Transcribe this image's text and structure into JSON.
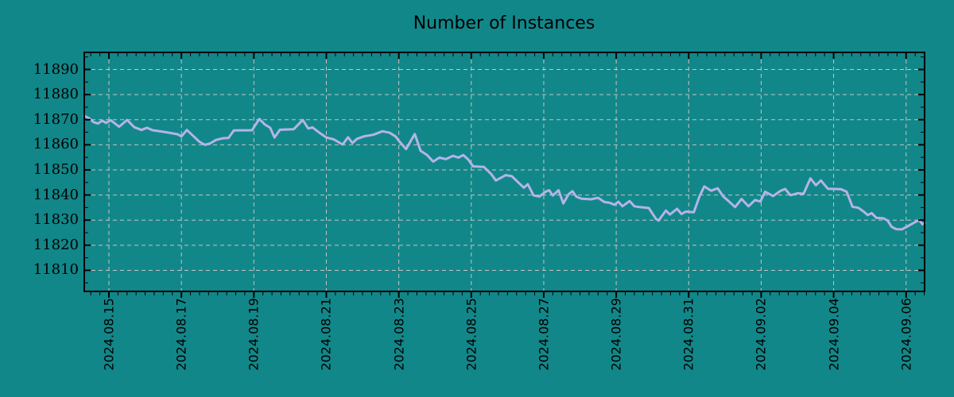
{
  "chart_data": {
    "type": "line",
    "title": "Number of Instances",
    "legend": "none",
    "grid": {
      "style": "dashed",
      "major_only": true
    },
    "colors": {
      "background": "#128789",
      "line": "#b4b4e8",
      "grid": "#c4c4c4",
      "frame": "#000000",
      "text": "#000000"
    },
    "x_axis": {
      "range_days": [
        -0.68,
        22.51
      ],
      "minor_tick_step_days": 0.25,
      "tick_labels": [
        {
          "d": 0,
          "label": "2024.08.15"
        },
        {
          "d": 2,
          "label": "2024.08.17"
        },
        {
          "d": 4,
          "label": "2024.08.19"
        },
        {
          "d": 6,
          "label": "2024.08.21"
        },
        {
          "d": 8,
          "label": "2024.08.23"
        },
        {
          "d": 10,
          "label": "2024.08.25"
        },
        {
          "d": 12,
          "label": "2024.08.27"
        },
        {
          "d": 14,
          "label": "2024.08.29"
        },
        {
          "d": 16,
          "label": "2024.08.31"
        },
        {
          "d": 18,
          "label": "2024.09.02"
        },
        {
          "d": 20,
          "label": "2024.09.04"
        },
        {
          "d": 22,
          "label": "2024.09.06"
        }
      ]
    },
    "y_axis": {
      "range": [
        11801.6,
        11896.8
      ],
      "ticks": [
        11810,
        11820,
        11830,
        11840,
        11850,
        11860,
        11870,
        11880,
        11890
      ],
      "minor_tick_step": 5
    },
    "series": [
      {
        "name": "instances",
        "points": [
          [
            -0.68,
            11871.5
          ],
          [
            -0.55,
            11870.6
          ],
          [
            -0.42,
            11869.0
          ],
          [
            -0.3,
            11868.5
          ],
          [
            -0.18,
            11869.6
          ],
          [
            -0.08,
            11868.7
          ],
          [
            0.05,
            11869.8
          ],
          [
            0.28,
            11867.2
          ],
          [
            0.5,
            11869.9
          ],
          [
            0.7,
            11867.0
          ],
          [
            0.9,
            11865.9
          ],
          [
            1.05,
            11866.8
          ],
          [
            1.2,
            11865.8
          ],
          [
            1.45,
            11865.3
          ],
          [
            1.7,
            11864.7
          ],
          [
            1.9,
            11864.2
          ],
          [
            2.0,
            11863.3
          ],
          [
            2.15,
            11865.9
          ],
          [
            2.35,
            11863.2
          ],
          [
            2.5,
            11861.2
          ],
          [
            2.65,
            11860.0
          ],
          [
            2.8,
            11860.6
          ],
          [
            2.95,
            11861.9
          ],
          [
            3.15,
            11862.6
          ],
          [
            3.3,
            11862.7
          ],
          [
            3.45,
            11865.7
          ],
          [
            3.95,
            11865.8
          ],
          [
            4.15,
            11870.3
          ],
          [
            4.3,
            11868.1
          ],
          [
            4.45,
            11866.8
          ],
          [
            4.57,
            11862.9
          ],
          [
            4.72,
            11866.0
          ],
          [
            5.1,
            11866.2
          ],
          [
            5.35,
            11869.9
          ],
          [
            5.5,
            11866.5
          ],
          [
            5.62,
            11866.9
          ],
          [
            5.8,
            11864.9
          ],
          [
            6.0,
            11862.9
          ],
          [
            6.2,
            11862.2
          ],
          [
            6.45,
            11860.1
          ],
          [
            6.6,
            11863.0
          ],
          [
            6.72,
            11860.7
          ],
          [
            6.85,
            11862.4
          ],
          [
            7.05,
            11863.4
          ],
          [
            7.3,
            11864.0
          ],
          [
            7.55,
            11865.4
          ],
          [
            7.75,
            11864.8
          ],
          [
            7.92,
            11863.2
          ],
          [
            8.0,
            11861.6
          ],
          [
            8.2,
            11858.3
          ],
          [
            8.44,
            11864.3
          ],
          [
            8.6,
            11857.6
          ],
          [
            8.78,
            11855.9
          ],
          [
            8.95,
            11853.3
          ],
          [
            9.12,
            11854.9
          ],
          [
            9.3,
            11854.3
          ],
          [
            9.5,
            11855.6
          ],
          [
            9.64,
            11854.9
          ],
          [
            9.78,
            11855.9
          ],
          [
            9.92,
            11854.1
          ],
          [
            10.05,
            11851.4
          ],
          [
            10.35,
            11851.2
          ],
          [
            10.55,
            11848.3
          ],
          [
            10.68,
            11845.8
          ],
          [
            10.95,
            11847.9
          ],
          [
            11.12,
            11847.5
          ],
          [
            11.3,
            11845.0
          ],
          [
            11.45,
            11842.9
          ],
          [
            11.56,
            11844.3
          ],
          [
            11.72,
            11839.8
          ],
          [
            11.88,
            11839.4
          ],
          [
            12.06,
            11841.4
          ],
          [
            12.15,
            11841.9
          ],
          [
            12.25,
            11839.8
          ],
          [
            12.41,
            11841.9
          ],
          [
            12.54,
            11836.6
          ],
          [
            12.68,
            11840.2
          ],
          [
            12.79,
            11841.5
          ],
          [
            12.9,
            11839.3
          ],
          [
            13.05,
            11838.5
          ],
          [
            13.3,
            11838.3
          ],
          [
            13.5,
            11838.9
          ],
          [
            13.67,
            11837.2
          ],
          [
            13.82,
            11836.9
          ],
          [
            13.95,
            11836.1
          ],
          [
            14.06,
            11837.3
          ],
          [
            14.17,
            11835.5
          ],
          [
            14.37,
            11837.6
          ],
          [
            14.5,
            11835.5
          ],
          [
            14.65,
            11835.2
          ],
          [
            14.9,
            11834.8
          ],
          [
            15.1,
            11830.4
          ],
          [
            15.17,
            11829.8
          ],
          [
            15.37,
            11833.8
          ],
          [
            15.48,
            11832.2
          ],
          [
            15.68,
            11834.5
          ],
          [
            15.8,
            11832.4
          ],
          [
            15.92,
            11833.4
          ],
          [
            16.14,
            11833.1
          ],
          [
            16.3,
            11839.5
          ],
          [
            16.43,
            11843.4
          ],
          [
            16.62,
            11841.7
          ],
          [
            16.8,
            11842.7
          ],
          [
            16.95,
            11839.5
          ],
          [
            17.1,
            11837.6
          ],
          [
            17.28,
            11835.2
          ],
          [
            17.46,
            11838.4
          ],
          [
            17.65,
            11835.5
          ],
          [
            17.83,
            11838.0
          ],
          [
            17.98,
            11837.4
          ],
          [
            18.11,
            11841.3
          ],
          [
            18.33,
            11839.6
          ],
          [
            18.53,
            11841.6
          ],
          [
            18.66,
            11842.4
          ],
          [
            18.81,
            11839.9
          ],
          [
            19.0,
            11840.7
          ],
          [
            19.17,
            11840.5
          ],
          [
            19.36,
            11846.6
          ],
          [
            19.51,
            11843.9
          ],
          [
            19.65,
            11845.8
          ],
          [
            19.84,
            11842.5
          ],
          [
            20.2,
            11842.3
          ],
          [
            20.36,
            11841.3
          ],
          [
            20.52,
            11835.3
          ],
          [
            20.68,
            11834.9
          ],
          [
            20.83,
            11833.4
          ],
          [
            20.94,
            11832.0
          ],
          [
            21.05,
            11832.8
          ],
          [
            21.18,
            11830.9
          ],
          [
            21.38,
            11830.7
          ],
          [
            21.49,
            11829.8
          ],
          [
            21.6,
            11827.3
          ],
          [
            21.73,
            11826.4
          ],
          [
            21.88,
            11826.3
          ],
          [
            22.06,
            11827.7
          ],
          [
            22.21,
            11828.9
          ],
          [
            22.36,
            11830.0
          ],
          [
            22.45,
            11828.4
          ],
          [
            22.51,
            11828.9
          ]
        ]
      }
    ]
  }
}
